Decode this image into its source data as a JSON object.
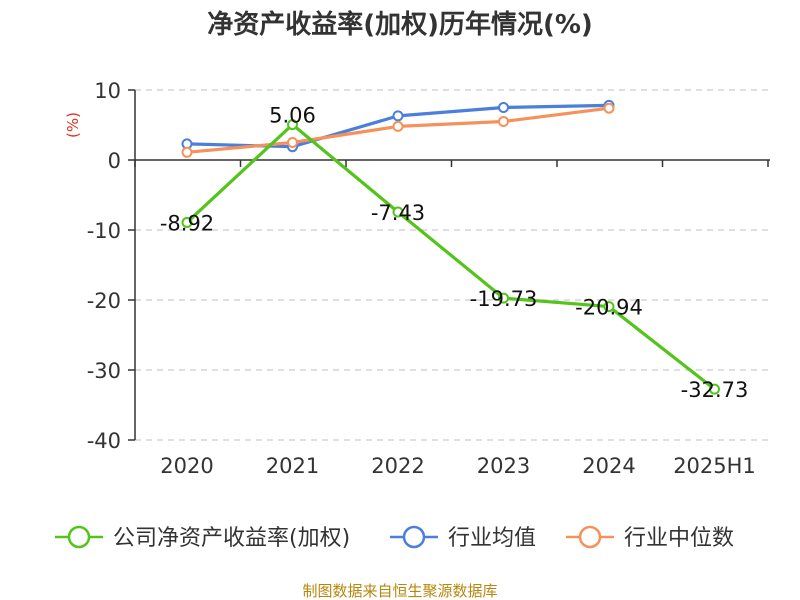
{
  "chart_data": {
    "type": "line",
    "title": "净资产收益率(加权)历年情况(%)",
    "ylabel": "(%)",
    "categories": [
      "2020",
      "2021",
      "2022",
      "2023",
      "2024",
      "2025H1"
    ],
    "ylim": [
      -40,
      10
    ],
    "yticks": [
      10,
      0,
      -10,
      -20,
      -30,
      -40
    ],
    "ytick_labels": [
      "10",
      "0",
      "-10",
      "-20",
      "-30",
      "-40"
    ],
    "grid": true,
    "legend_position": "bottom",
    "series": [
      {
        "name": "公司净资产收益率(加权)",
        "color": "#52c41a",
        "values": [
          -8.92,
          5.06,
          -7.43,
          -19.73,
          -20.94,
          -32.73
        ],
        "labels": [
          "-8.92",
          "5.06",
          "-7.43",
          "-19.73",
          "-20.94",
          "-32.73"
        ]
      },
      {
        "name": "行业均值",
        "color": "#4a7fdc",
        "values": [
          2.3,
          1.9,
          6.3,
          7.5,
          7.8,
          null
        ]
      },
      {
        "name": "行业中位数",
        "color": "#f5915a",
        "values": [
          1.1,
          2.5,
          4.8,
          5.5,
          7.4,
          null
        ]
      }
    ],
    "source": "制图数据来自恒生聚源数据库"
  }
}
